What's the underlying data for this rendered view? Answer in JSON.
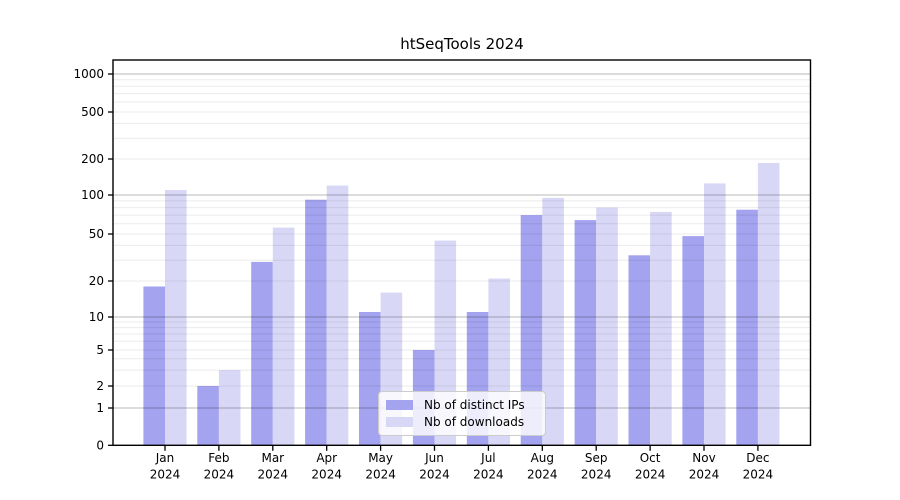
{
  "chart_data": {
    "type": "bar",
    "title": "htSeqTools 2024",
    "categories": [
      "Jan",
      "Feb",
      "Mar",
      "Apr",
      "May",
      "Jun",
      "Jul",
      "Aug",
      "Sep",
      "Oct",
      "Nov",
      "Dec"
    ],
    "x_sublabel": "2024",
    "series": [
      {
        "name": "Nb of distinct IPs",
        "color": "#a3a3ef",
        "values": [
          18,
          2,
          29,
          92,
          11,
          5,
          11,
          70,
          64,
          33,
          48,
          77
        ]
      },
      {
        "name": "Nb of downloads",
        "color": "#d8d8f6",
        "values": [
          110,
          3,
          56,
          120,
          16,
          44,
          21,
          95,
          80,
          74,
          125,
          185
        ]
      }
    ],
    "y_axis": {
      "scale": "symlog",
      "tick_values": [
        0,
        1,
        2,
        5,
        10,
        20,
        50,
        100,
        200,
        500,
        1000
      ],
      "tick_labels": [
        "0",
        "1",
        "2",
        "5",
        "10",
        "20",
        "50",
        "100",
        "200",
        "500",
        "1000"
      ],
      "range": [
        0,
        1300
      ],
      "major_gridline_values": [
        1,
        10,
        100,
        1000
      ]
    },
    "grid": {
      "major": true,
      "minor": true
    },
    "legend": {
      "position": "lower-center",
      "items": [
        "Nb of distinct IPs",
        "Nb of downloads"
      ]
    },
    "colors": {
      "major_grid": "#bdbdbd",
      "minor_grid": "#ececec",
      "axis": "#000000",
      "text": "#000000"
    }
  }
}
